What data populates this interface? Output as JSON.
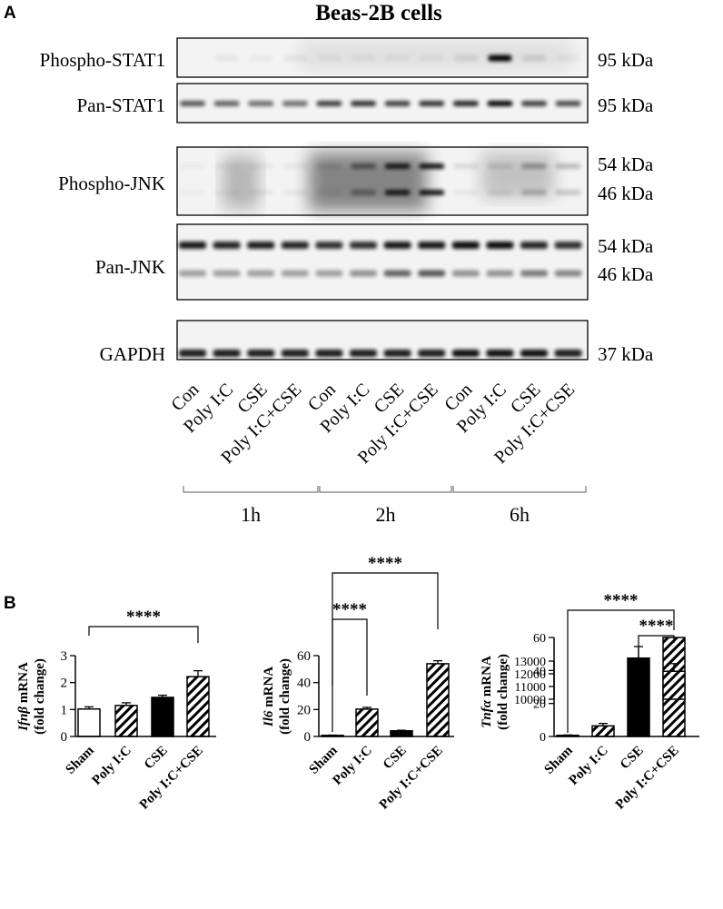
{
  "panel_a": {
    "letter": "A",
    "title": "Beas-2B cells",
    "blots": [
      {
        "label": "Phospho-STAT1",
        "sizes": [
          "95 kDa"
        ]
      },
      {
        "label": "Pan-STAT1",
        "sizes": [
          "95 kDa"
        ]
      },
      {
        "label": "Phospho-JNK",
        "sizes": [
          "54 kDa",
          "46 kDa"
        ]
      },
      {
        "label": "Pan-JNK",
        "sizes": [
          "54 kDa",
          "46 kDa"
        ]
      },
      {
        "label": "GAPDH",
        "sizes": [
          "37 kDa"
        ]
      }
    ],
    "treatments": [
      "Con",
      "Poly I:C",
      "CSE",
      "Poly I:C+CSE"
    ],
    "timepoints": [
      "1h",
      "2h",
      "6h"
    ]
  },
  "panel_b": {
    "letter": "B",
    "significance": "****",
    "charts": [
      {
        "type": "bar",
        "gene": "Ifnβ",
        "ylabel_suffix": " mRNA",
        "ylabel_line2": "(fold change)",
        "categories": [
          "Sham",
          "Poly I:C",
          "CSE",
          "Poly I:C+CSE"
        ],
        "values": [
          1.02,
          1.15,
          1.45,
          2.22
        ],
        "errors": [
          0.08,
          0.1,
          0.08,
          0.22
        ],
        "fills": [
          "white",
          "hatch",
          "black",
          "hatch"
        ],
        "ylim": [
          0,
          3
        ],
        "yticks": [
          0,
          1,
          2,
          3
        ],
        "comparisons": [
          {
            "from": 0,
            "to": 3
          }
        ]
      },
      {
        "type": "bar",
        "gene": "Il6",
        "ylabel_suffix": " mRNA",
        "ylabel_line2": "(fold change)",
        "categories": [
          "Sham",
          "Poly I:C",
          "CSE",
          "Poly I:C+CSE"
        ],
        "values": [
          0.8,
          20.3,
          4.2,
          54.0
        ],
        "errors": [
          0.2,
          1.3,
          0.4,
          2.2
        ],
        "fills": [
          "white",
          "hatch",
          "black",
          "hatch"
        ],
        "ylim": [
          0,
          60
        ],
        "yticks": [
          0,
          20,
          40,
          60
        ],
        "comparisons": [
          {
            "from": 0,
            "to": 1
          },
          {
            "from": 0,
            "to": 3
          }
        ]
      },
      {
        "type": "bar",
        "gene": "Tnfα",
        "ylabel_suffix": " mRNA",
        "ylabel_line2": "(fold change)",
        "categories": [
          "Sham",
          "Poly I:C",
          "CSE",
          "Poly I:C+CSE"
        ],
        "values": [
          0.7,
          6.4,
          47.5,
          12200
        ],
        "errors": [
          0.2,
          1.5,
          7.0,
          600
        ],
        "fills": [
          "white",
          "hatch",
          "black",
          "hatch"
        ],
        "ylim_lower": [
          0,
          60
        ],
        "ylim_upper": [
          10000,
          13000
        ],
        "yticks_lower": [
          0,
          20,
          40,
          60
        ],
        "yticks_upper": [
          10000,
          11000,
          12000,
          13000
        ],
        "comparisons": [
          {
            "from": 0,
            "to": 3
          },
          {
            "from": 2,
            "to": 3
          }
        ]
      }
    ]
  }
}
